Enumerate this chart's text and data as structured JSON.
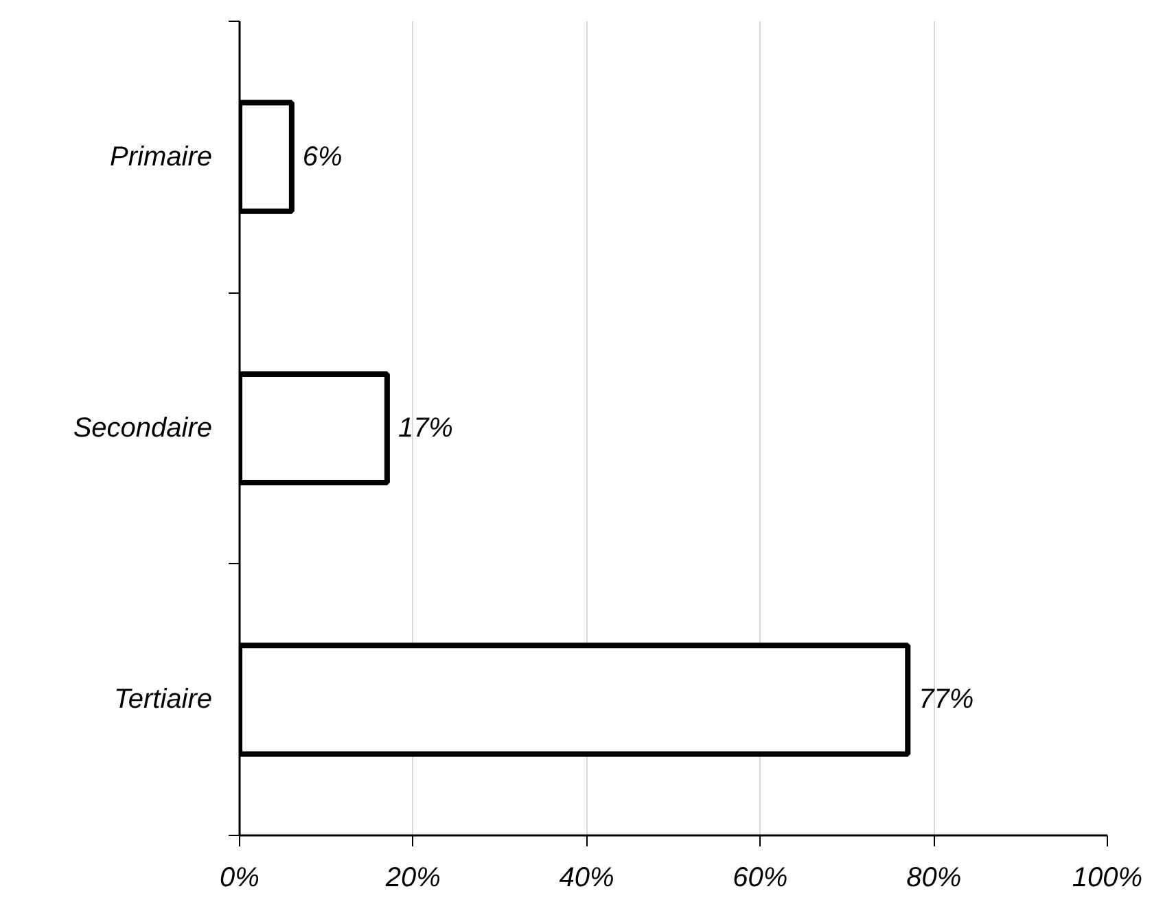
{
  "chart_data": {
    "type": "bar",
    "orientation": "horizontal",
    "categories": [
      "Primaire",
      "Secondaire",
      "Tertiaire"
    ],
    "values": [
      6,
      17,
      77
    ],
    "value_labels": [
      "6%",
      "17%",
      "77%"
    ],
    "color": "#ffffff",
    "xlim": [
      0,
      100
    ],
    "xticks": [
      {
        "value": 0,
        "label": "0%"
      },
      {
        "value": 20,
        "label": "20%"
      },
      {
        "value": 40,
        "label": "40%"
      },
      {
        "value": 60,
        "label": "60%"
      },
      {
        "value": 80,
        "label": "80%"
      },
      {
        "value": 100,
        "label": "100%"
      }
    ],
    "grid": "x"
  }
}
